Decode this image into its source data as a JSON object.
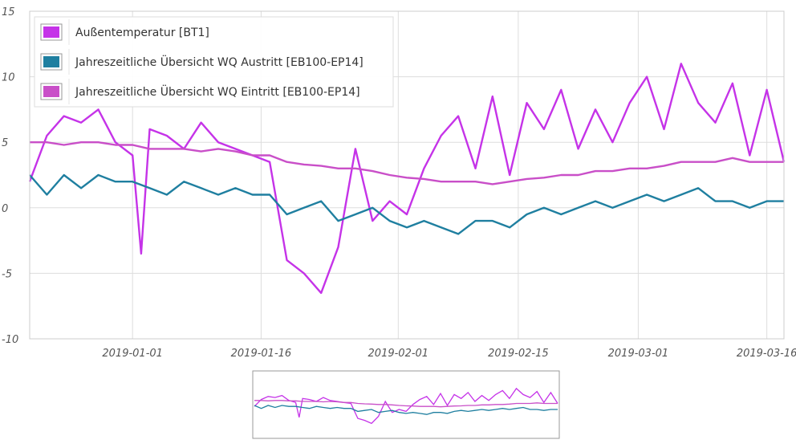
{
  "chart_data": {
    "type": "line",
    "title": "",
    "xlabel": "",
    "ylabel": "",
    "ylim": [
      -10,
      15
    ],
    "xlim": [
      "2018-12-20",
      "2019-03-18"
    ],
    "yticks": [
      -10,
      -5,
      0,
      5,
      10,
      15
    ],
    "ytick_labels": [
      "-10",
      "-5",
      "0",
      "5",
      "10",
      "15"
    ],
    "xticks": [
      "2019-01-01",
      "2019-01-16",
      "2019-02-01",
      "2019-02-15",
      "2019-03-01",
      "2019-03-16"
    ],
    "xtick_labels": [
      "2019-01-01",
      "2019-01-16",
      "2019-02-01",
      "2019-02-15",
      "2019-03-01",
      "2019-03-16"
    ],
    "grid": true,
    "legend_position": "top-left",
    "has_navigator": true,
    "series": [
      {
        "name": "Außentemperatur [BT1]",
        "color": "#c533e8",
        "x": [
          "2018-12-20",
          "2018-12-22",
          "2018-12-24",
          "2018-12-26",
          "2018-12-28",
          "2018-12-30",
          "2019-01-01",
          "2019-01-02",
          "2019-01-03",
          "2019-01-05",
          "2019-01-07",
          "2019-01-09",
          "2019-01-11",
          "2019-01-13",
          "2019-01-15",
          "2019-01-17",
          "2019-01-19",
          "2019-01-21",
          "2019-01-23",
          "2019-01-25",
          "2019-01-27",
          "2019-01-29",
          "2019-01-31",
          "2019-02-02",
          "2019-02-04",
          "2019-02-06",
          "2019-02-08",
          "2019-02-10",
          "2019-02-12",
          "2019-02-14",
          "2019-02-16",
          "2019-02-18",
          "2019-02-20",
          "2019-02-22",
          "2019-02-24",
          "2019-02-26",
          "2019-02-28",
          "2019-03-02",
          "2019-03-04",
          "2019-03-06",
          "2019-03-08",
          "2019-03-10",
          "2019-03-12",
          "2019-03-14",
          "2019-03-16",
          "2019-03-18"
        ],
        "y": [
          2.0,
          5.5,
          7.0,
          6.5,
          7.5,
          5.0,
          4.0,
          -3.5,
          6.0,
          5.5,
          4.5,
          6.5,
          5.0,
          4.5,
          4.0,
          3.5,
          -4.0,
          -5.0,
          -6.5,
          -3.0,
          4.5,
          -1.0,
          0.5,
          -0.5,
          3.0,
          5.5,
          7.0,
          3.0,
          8.5,
          2.5,
          8.0,
          6.0,
          9.0,
          4.5,
          7.5,
          5.0,
          8.0,
          10.0,
          6.0,
          11.0,
          8.0,
          6.5,
          9.5,
          4.0,
          9.0,
          3.5
        ]
      },
      {
        "name": "Jahreszeitliche Übersicht WQ Austritt [EB100-EP14]",
        "color": "#1f7fa0",
        "x": [
          "2018-12-20",
          "2018-12-22",
          "2018-12-24",
          "2018-12-26",
          "2018-12-28",
          "2018-12-30",
          "2019-01-01",
          "2019-01-03",
          "2019-01-05",
          "2019-01-07",
          "2019-01-09",
          "2019-01-11",
          "2019-01-13",
          "2019-01-15",
          "2019-01-17",
          "2019-01-19",
          "2019-01-21",
          "2019-01-23",
          "2019-01-25",
          "2019-01-27",
          "2019-01-29",
          "2019-01-31",
          "2019-02-02",
          "2019-02-04",
          "2019-02-06",
          "2019-02-08",
          "2019-02-10",
          "2019-02-12",
          "2019-02-14",
          "2019-02-16",
          "2019-02-18",
          "2019-02-20",
          "2019-02-22",
          "2019-02-24",
          "2019-02-26",
          "2019-02-28",
          "2019-03-02",
          "2019-03-04",
          "2019-03-06",
          "2019-03-08",
          "2019-03-10",
          "2019-03-12",
          "2019-03-14",
          "2019-03-16",
          "2019-03-18"
        ],
        "y": [
          2.5,
          1.0,
          2.5,
          1.5,
          2.5,
          2.0,
          2.0,
          1.5,
          1.0,
          2.0,
          1.5,
          1.0,
          1.5,
          1.0,
          1.0,
          -0.5,
          0.0,
          0.5,
          -1.0,
          -0.5,
          0.0,
          -1.0,
          -1.5,
          -1.0,
          -1.5,
          -2.0,
          -1.0,
          -1.0,
          -1.5,
          -0.5,
          0.0,
          -0.5,
          0.0,
          0.5,
          0.0,
          0.5,
          1.0,
          0.5,
          1.0,
          1.5,
          0.5,
          0.5,
          0.0,
          0.5,
          0.5
        ]
      },
      {
        "name": "Jahreszeitliche Übersicht WQ Eintritt [EB100-EP14]",
        "color": "#c94fc8",
        "x": [
          "2018-12-20",
          "2018-12-22",
          "2018-12-24",
          "2018-12-26",
          "2018-12-28",
          "2018-12-30",
          "2019-01-01",
          "2019-01-03",
          "2019-01-05",
          "2019-01-07",
          "2019-01-09",
          "2019-01-11",
          "2019-01-13",
          "2019-01-15",
          "2019-01-17",
          "2019-01-19",
          "2019-01-21",
          "2019-01-23",
          "2019-01-25",
          "2019-01-27",
          "2019-01-29",
          "2019-01-31",
          "2019-02-02",
          "2019-02-04",
          "2019-02-06",
          "2019-02-08",
          "2019-02-10",
          "2019-02-12",
          "2019-02-14",
          "2019-02-16",
          "2019-02-18",
          "2019-02-20",
          "2019-02-22",
          "2019-02-24",
          "2019-02-26",
          "2019-02-28",
          "2019-03-02",
          "2019-03-04",
          "2019-03-06",
          "2019-03-08",
          "2019-03-10",
          "2019-03-12",
          "2019-03-14",
          "2019-03-16",
          "2019-03-18"
        ],
        "y": [
          5.0,
          5.0,
          4.8,
          5.0,
          5.0,
          4.8,
          4.8,
          4.5,
          4.5,
          4.5,
          4.3,
          4.5,
          4.3,
          4.0,
          4.0,
          3.5,
          3.3,
          3.2,
          3.0,
          3.0,
          2.8,
          2.5,
          2.3,
          2.2,
          2.0,
          2.0,
          2.0,
          1.8,
          2.0,
          2.2,
          2.3,
          2.5,
          2.5,
          2.8,
          2.8,
          3.0,
          3.0,
          3.2,
          3.5,
          3.5,
          3.5,
          3.8,
          3.5,
          3.5,
          3.5
        ]
      }
    ]
  }
}
